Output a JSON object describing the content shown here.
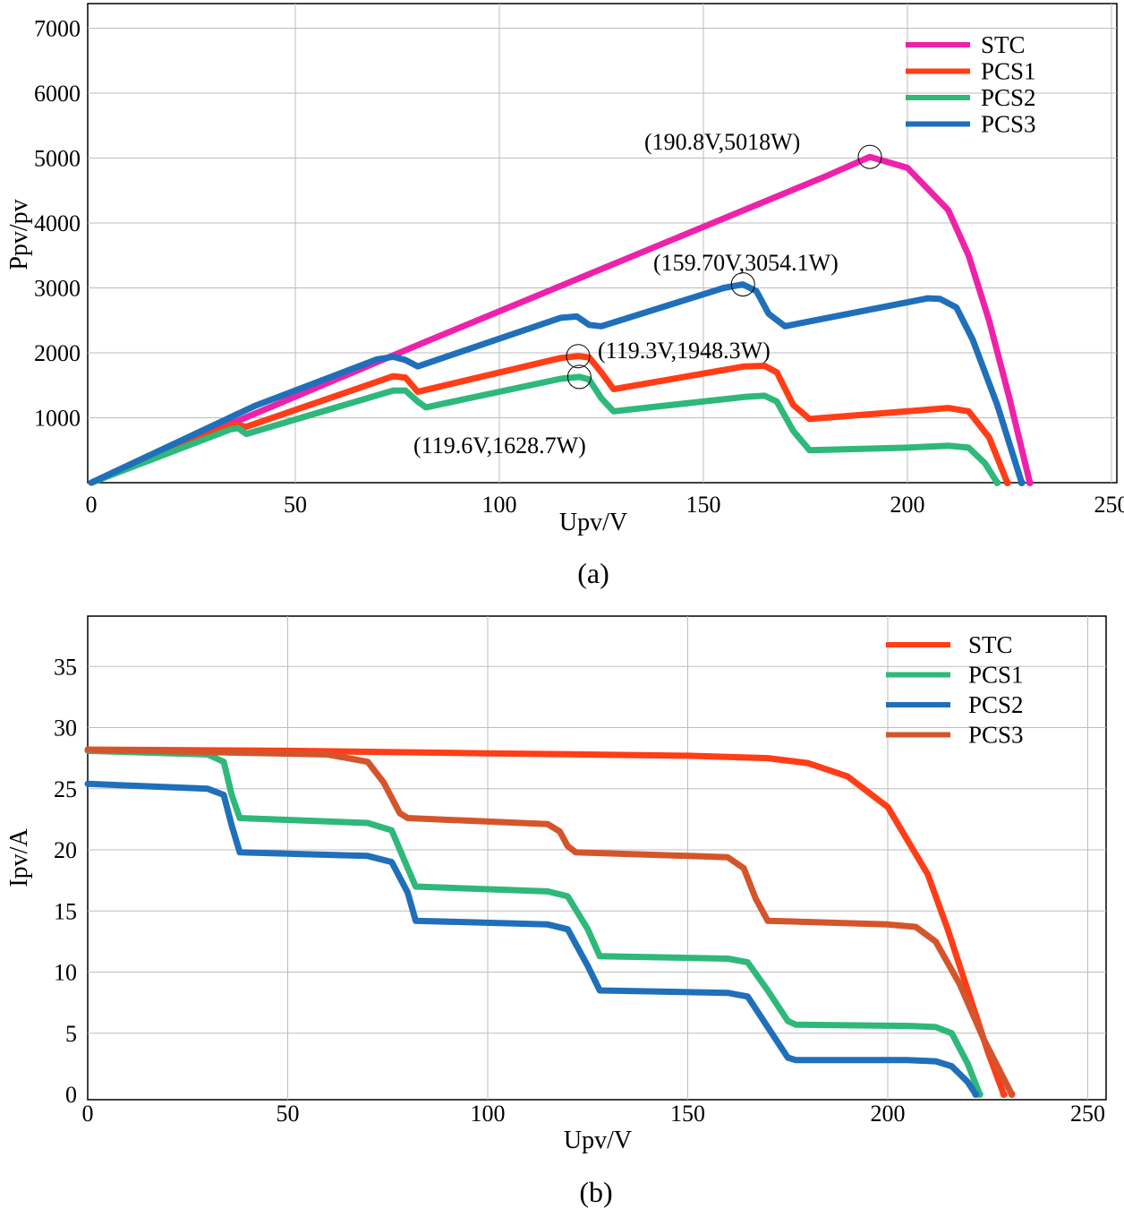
{
  "chart_data": [
    {
      "type": "line",
      "panel_label": "(a)",
      "xlabel": "Upv/V",
      "ylabel": "Ppv/pv",
      "xlim": [
        0,
        250
      ],
      "ylim": [
        0,
        7000
      ],
      "xticks": [
        "0",
        "50",
        "100",
        "150",
        "200",
        "250"
      ],
      "yticks": [
        "1000",
        "2000",
        "3000",
        "4000",
        "5000",
        "6000",
        "7000"
      ],
      "grid": true,
      "legend_position": "top-right",
      "series": [
        {
          "name": "STC",
          "color": "#ee22aa",
          "x": [
            0,
            20,
            40,
            60,
            80,
            100,
            120,
            140,
            160,
            180,
            190.8,
            200,
            210,
            215,
            220,
            225,
            230
          ],
          "y": [
            0,
            530,
            1060,
            1590,
            2120,
            2640,
            3160,
            3680,
            4200,
            4720,
            5018,
            4850,
            4200,
            3500,
            2500,
            1300,
            0
          ]
        },
        {
          "name": "PCS1",
          "color": "#ff3d17",
          "x": [
            0,
            34,
            36,
            38,
            74,
            77,
            80,
            115,
            119.3,
            122,
            125,
            128,
            160,
            165,
            168,
            172,
            176,
            200,
            210,
            215,
            220,
            224.5
          ],
          "y": [
            0,
            880,
            890,
            860,
            1640,
            1620,
            1400,
            1920,
            1948.3,
            1930,
            1700,
            1440,
            1790,
            1800,
            1700,
            1200,
            980,
            1100,
            1150,
            1100,
            700,
            0
          ]
        },
        {
          "name": "PCS2",
          "color": "#2eb87a",
          "x": [
            0,
            34,
            36,
            38,
            74,
            77,
            80,
            82,
            115,
            119.6,
            122,
            125,
            128,
            160,
            165,
            168,
            172,
            176,
            200,
            210,
            215,
            219,
            222
          ],
          "y": [
            0,
            820,
            840,
            750,
            1420,
            1420,
            1250,
            1160,
            1600,
            1628.7,
            1590,
            1300,
            1100,
            1320,
            1340,
            1250,
            800,
            500,
            540,
            570,
            540,
            300,
            0
          ]
        },
        {
          "name": "PCS3",
          "color": "#1f6fba",
          "x": [
            0,
            40,
            70,
            74,
            77,
            80,
            115,
            119,
            122,
            125,
            155,
            159.7,
            163,
            166,
            170,
            205,
            208,
            212,
            216,
            222,
            228
          ],
          "y": [
            0,
            1180,
            1900,
            1940,
            1890,
            1790,
            2540,
            2560,
            2430,
            2410,
            3000,
            3054.1,
            2950,
            2600,
            2410,
            2840,
            2830,
            2700,
            2200,
            1200,
            0
          ]
        }
      ],
      "annotations": [
        {
          "text": "(190.8V,5018W)",
          "x": 190.8,
          "y": 5018
        },
        {
          "text": "(159.70V,3054.1W)",
          "x": 159.7,
          "y": 3054.1
        },
        {
          "text": "(119.3V,1948.3W)",
          "x": 119.3,
          "y": 1948.3
        },
        {
          "text": "(119.6V,1628.7W)",
          "x": 119.6,
          "y": 1628.7
        }
      ]
    },
    {
      "type": "line",
      "panel_label": "(b)",
      "xlabel": "Upv/V",
      "ylabel": "Ipv/A",
      "xlim": [
        0,
        250
      ],
      "ylim": [
        0,
        38
      ],
      "xticks": [
        "0",
        "50",
        "100",
        "150",
        "200",
        "250"
      ],
      "yticks": [
        "0",
        "5",
        "10",
        "15",
        "20",
        "25",
        "30",
        "35"
      ],
      "grid": true,
      "legend_position": "top-right",
      "series": [
        {
          "name": "STC",
          "color": "#ff3d17",
          "x": [
            0,
            50,
            100,
            150,
            170,
            180,
            190,
            200,
            210,
            215,
            220,
            225,
            229
          ],
          "y": [
            28.2,
            28.1,
            27.9,
            27.7,
            27.5,
            27.1,
            26.0,
            23.5,
            18.0,
            13.5,
            8.5,
            3.5,
            0
          ]
        },
        {
          "name": "PCS1",
          "color": "#2eb87a",
          "x": [
            0,
            30,
            34,
            36,
            38,
            70,
            76,
            80,
            82,
            115,
            120,
            125,
            128,
            160,
            165,
            170,
            175,
            177,
            205,
            212,
            216,
            220,
            223
          ],
          "y": [
            28.1,
            27.8,
            27.2,
            24.5,
            22.6,
            22.2,
            21.6,
            18.5,
            17.0,
            16.6,
            16.2,
            13.5,
            11.3,
            11.1,
            10.8,
            8.5,
            6.0,
            5.7,
            5.6,
            5.5,
            5.0,
            2.5,
            0
          ]
        },
        {
          "name": "PCS2",
          "color": "#1f6fba",
          "x": [
            0,
            30,
            34,
            36,
            38,
            70,
            76,
            80,
            82,
            115,
            120,
            125,
            128,
            160,
            165,
            170,
            175,
            177,
            205,
            212,
            216,
            220,
            222
          ],
          "y": [
            25.4,
            25.0,
            24.5,
            22.0,
            19.8,
            19.5,
            19.0,
            16.5,
            14.2,
            13.9,
            13.5,
            10.5,
            8.5,
            8.3,
            8.0,
            5.5,
            3.0,
            2.8,
            2.8,
            2.7,
            2.3,
            1.0,
            0
          ]
        },
        {
          "name": "PCS3",
          "color": "#d4552b",
          "x": [
            0,
            60,
            70,
            74,
            78,
            80,
            115,
            118,
            120,
            122,
            160,
            164,
            167,
            170,
            200,
            207,
            212,
            218,
            224,
            231
          ],
          "y": [
            28.2,
            27.8,
            27.2,
            25.5,
            23.0,
            22.6,
            22.1,
            21.5,
            20.3,
            19.8,
            19.4,
            18.5,
            16.0,
            14.2,
            13.9,
            13.7,
            12.5,
            9.0,
            4.5,
            0
          ]
        }
      ]
    }
  ]
}
